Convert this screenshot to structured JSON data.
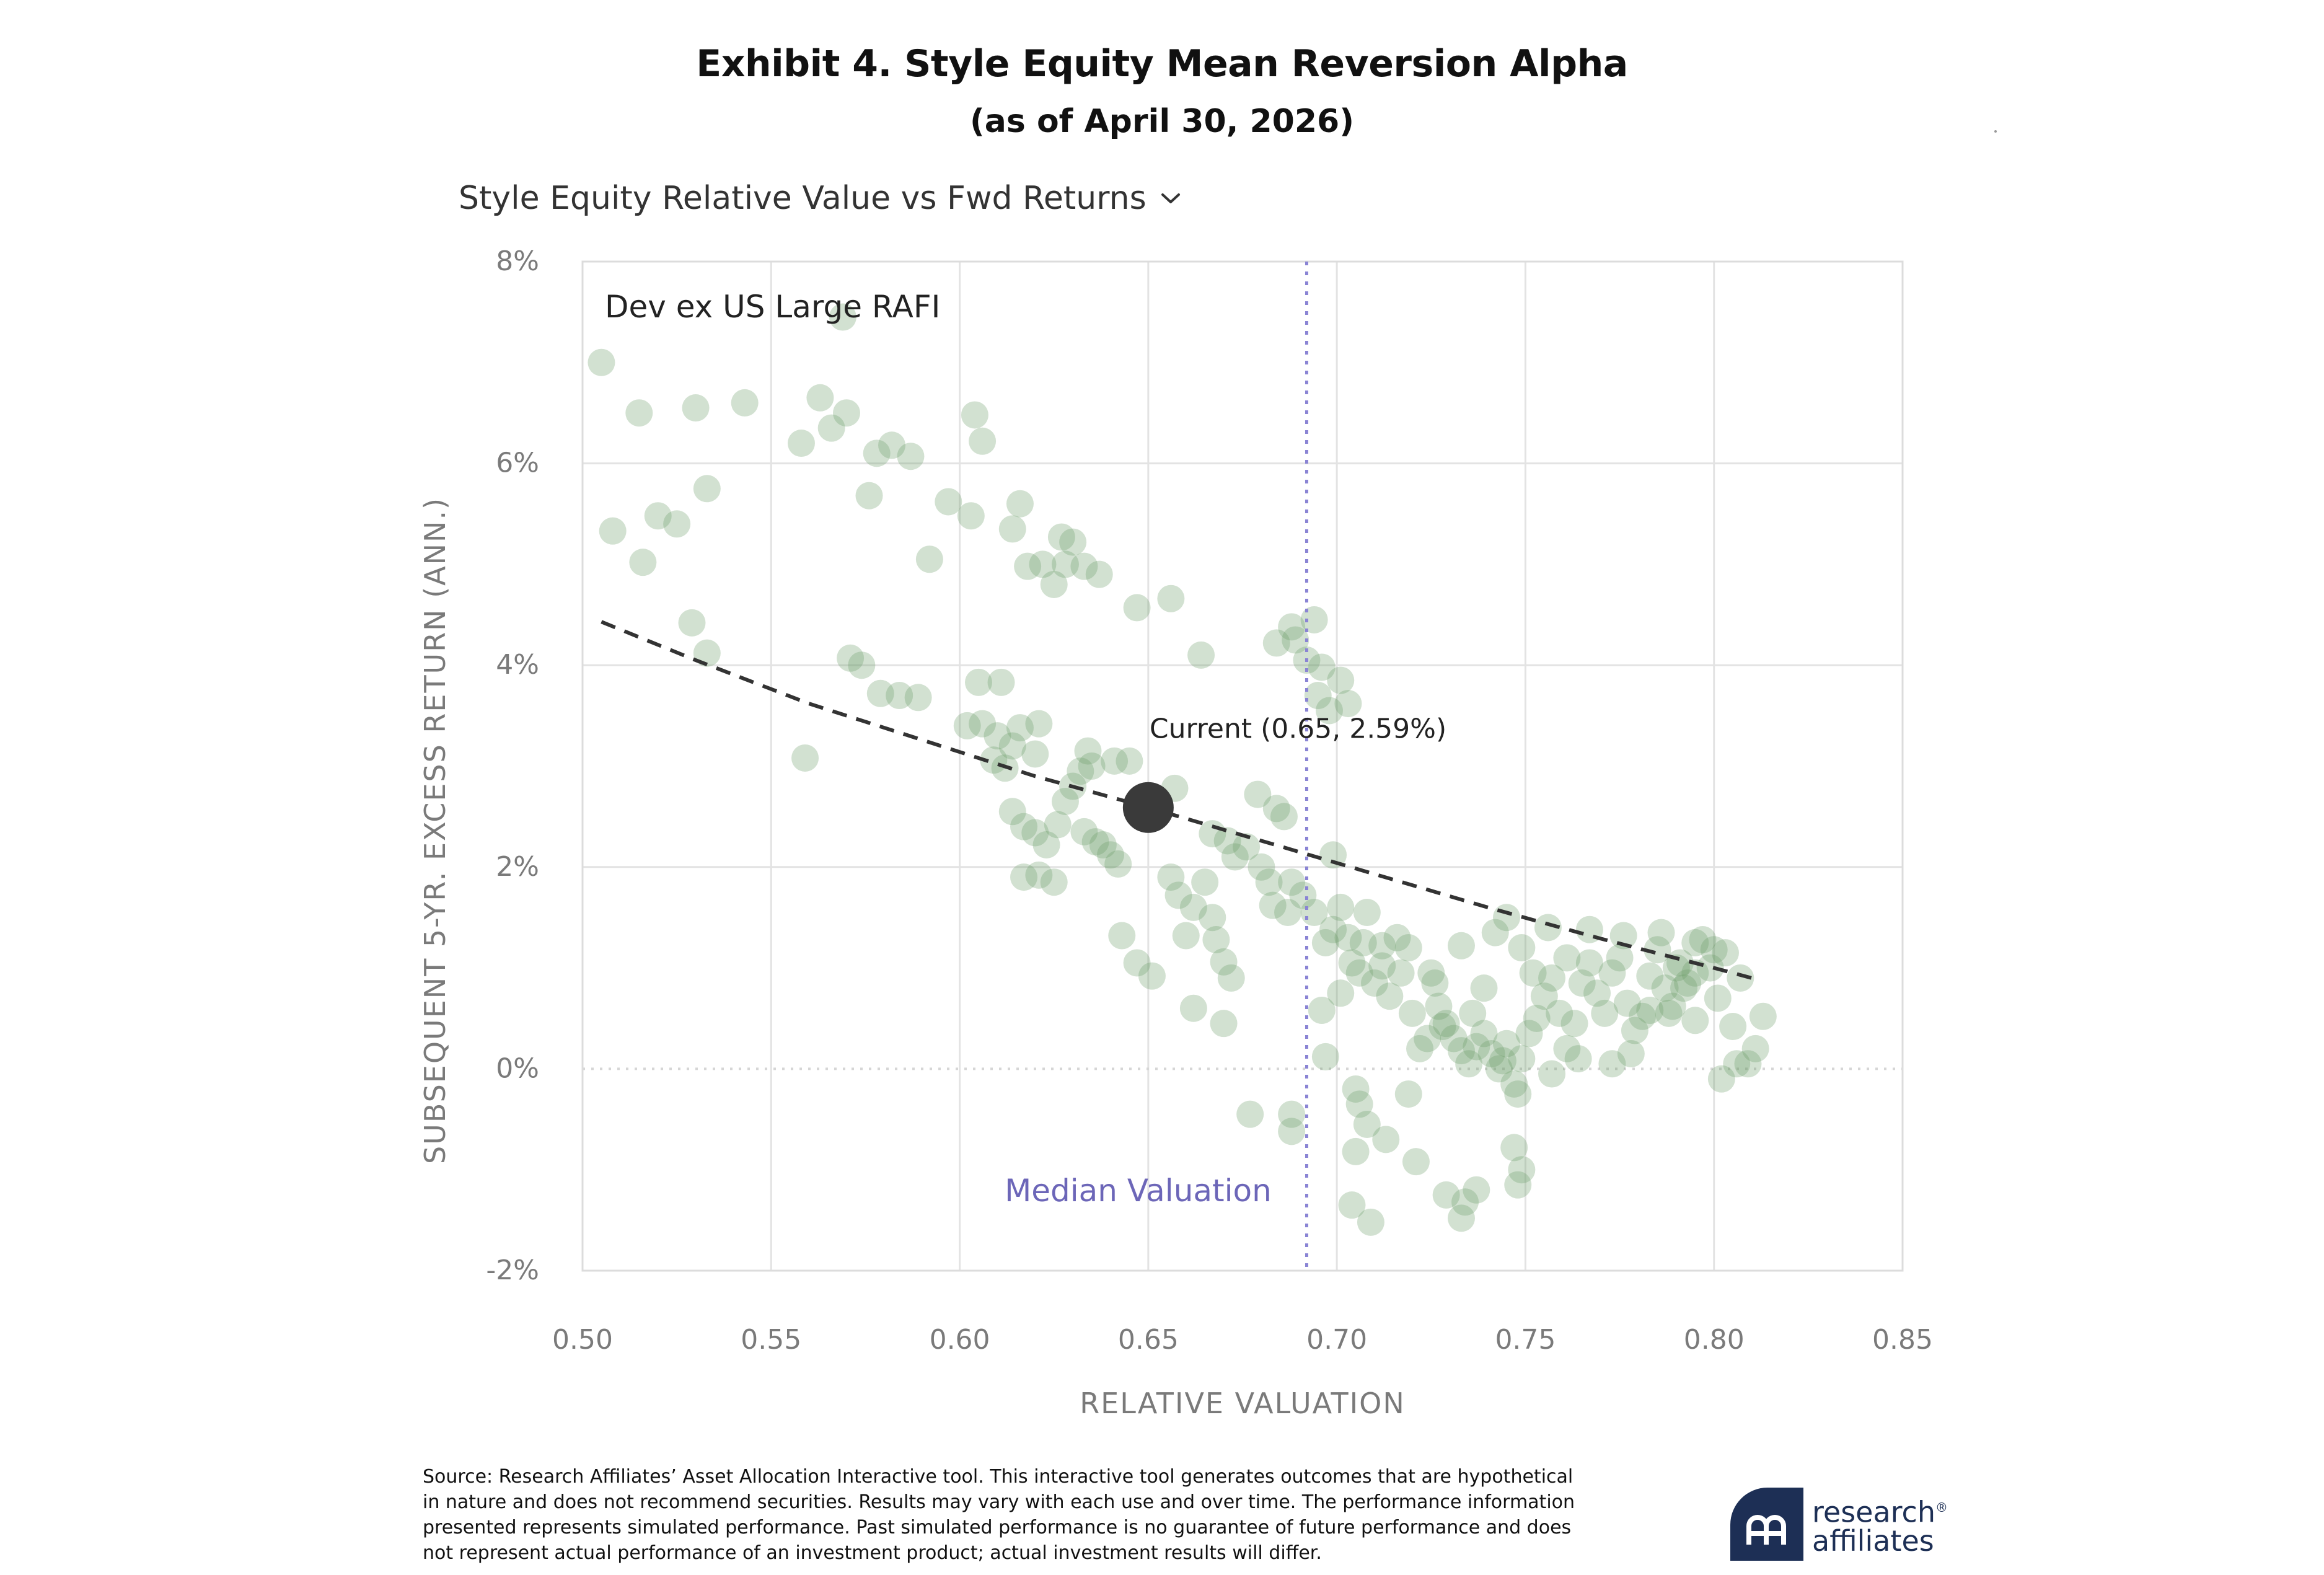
{
  "header": {
    "title": "Exhibit 4. Style Equity Mean Reversion Alpha",
    "subtitle": "(as of April 30, 2026)"
  },
  "selector": {
    "label": "Style Equity Relative Value vs Fwd Returns",
    "icon": "chevron-down-icon"
  },
  "chart_data": {
    "type": "scatter",
    "series_label": "Dev ex US Large RAFI",
    "xlabel": "RELATIVE VALUATION",
    "ylabel": "SUBSEQUENT 5-YR. EXCESS RETURN (ANN.)",
    "xlim": [
      0.5,
      0.85
    ],
    "ylim": [
      -2,
      8
    ],
    "x_ticks": [
      0.5,
      0.55,
      0.6,
      0.65,
      0.7,
      0.75,
      0.8,
      0.85
    ],
    "x_tick_labels": [
      "0.50",
      "0.55",
      "0.60",
      "0.65",
      "0.70",
      "0.75",
      "0.80",
      "0.85"
    ],
    "y_ticks": [
      -2,
      0,
      2,
      4,
      6,
      8
    ],
    "y_tick_labels": [
      "-2%",
      "0%",
      "2%",
      "4%",
      "6%",
      "8%"
    ],
    "grid": true,
    "median_valuation": 0.692,
    "median_label": "Median Valuation",
    "current": {
      "x": 0.65,
      "y": 2.59,
      "label": "Current (0.65, 2.59%)"
    },
    "trend_line": {
      "x": [
        0.505,
        0.53,
        0.56,
        0.59,
        0.62,
        0.65,
        0.68,
        0.71,
        0.74,
        0.77,
        0.8,
        0.812
      ],
      "y": [
        4.43,
        4.05,
        3.62,
        3.26,
        2.9,
        2.59,
        2.26,
        1.93,
        1.6,
        1.29,
        1.0,
        0.88
      ]
    },
    "points": [
      [
        0.505,
        7.0
      ],
      [
        0.515,
        6.5
      ],
      [
        0.53,
        6.55
      ],
      [
        0.543,
        6.6
      ],
      [
        0.563,
        6.65
      ],
      [
        0.569,
        7.45
      ],
      [
        0.57,
        6.5
      ],
      [
        0.508,
        5.33
      ],
      [
        0.52,
        5.48
      ],
      [
        0.525,
        5.4
      ],
      [
        0.516,
        5.02
      ],
      [
        0.533,
        5.75
      ],
      [
        0.558,
        6.2
      ],
      [
        0.566,
        6.35
      ],
      [
        0.578,
        6.1
      ],
      [
        0.582,
        6.18
      ],
      [
        0.587,
        6.07
      ],
      [
        0.604,
        6.48
      ],
      [
        0.606,
        6.22
      ],
      [
        0.576,
        5.68
      ],
      [
        0.597,
        5.62
      ],
      [
        0.603,
        5.48
      ],
      [
        0.614,
        5.35
      ],
      [
        0.616,
        5.6
      ],
      [
        0.618,
        4.98
      ],
      [
        0.622,
        5.0
      ],
      [
        0.627,
        5.27
      ],
      [
        0.63,
        5.22
      ],
      [
        0.628,
        5.0
      ],
      [
        0.633,
        4.98
      ],
      [
        0.637,
        4.9
      ],
      [
        0.625,
        4.8
      ],
      [
        0.592,
        5.05
      ],
      [
        0.647,
        4.57
      ],
      [
        0.656,
        4.66
      ],
      [
        0.664,
        4.1
      ],
      [
        0.529,
        4.42
      ],
      [
        0.533,
        4.12
      ],
      [
        0.571,
        4.07
      ],
      [
        0.574,
        4.0
      ],
      [
        0.579,
        3.72
      ],
      [
        0.584,
        3.7
      ],
      [
        0.589,
        3.68
      ],
      [
        0.605,
        3.83
      ],
      [
        0.611,
        3.83
      ],
      [
        0.559,
        3.08
      ],
      [
        0.602,
        3.4
      ],
      [
        0.606,
        3.42
      ],
      [
        0.61,
        3.3
      ],
      [
        0.614,
        3.2
      ],
      [
        0.616,
        3.38
      ],
      [
        0.62,
        3.12
      ],
      [
        0.621,
        3.42
      ],
      [
        0.609,
        3.06
      ],
      [
        0.612,
        2.98
      ],
      [
        0.634,
        3.15
      ],
      [
        0.635,
        3.0
      ],
      [
        0.641,
        3.05
      ],
      [
        0.645,
        3.05
      ],
      [
        0.632,
        2.95
      ],
      [
        0.614,
        2.55
      ],
      [
        0.617,
        2.4
      ],
      [
        0.62,
        2.34
      ],
      [
        0.623,
        2.22
      ],
      [
        0.626,
        2.42
      ],
      [
        0.628,
        2.65
      ],
      [
        0.63,
        2.8
      ],
      [
        0.633,
        2.35
      ],
      [
        0.636,
        2.25
      ],
      [
        0.638,
        2.22
      ],
      [
        0.64,
        2.12
      ],
      [
        0.642,
        2.03
      ],
      [
        0.617,
        1.9
      ],
      [
        0.621,
        1.92
      ],
      [
        0.625,
        1.85
      ],
      [
        0.657,
        2.78
      ],
      [
        0.656,
        1.9
      ],
      [
        0.658,
        1.72
      ],
      [
        0.66,
        1.32
      ],
      [
        0.662,
        1.6
      ],
      [
        0.665,
        1.85
      ],
      [
        0.667,
        1.5
      ],
      [
        0.668,
        1.28
      ],
      [
        0.67,
        1.06
      ],
      [
        0.672,
        0.9
      ],
      [
        0.667,
        2.33
      ],
      [
        0.671,
        2.26
      ],
      [
        0.673,
        2.1
      ],
      [
        0.676,
        2.2
      ],
      [
        0.68,
        2.0
      ],
      [
        0.682,
        1.85
      ],
      [
        0.683,
        1.62
      ],
      [
        0.679,
        2.72
      ],
      [
        0.684,
        2.58
      ],
      [
        0.686,
        2.5
      ],
      [
        0.688,
        1.85
      ],
      [
        0.691,
        1.72
      ],
      [
        0.687,
        1.55
      ],
      [
        0.643,
        1.32
      ],
      [
        0.647,
        1.05
      ],
      [
        0.651,
        0.92
      ],
      [
        0.662,
        0.6
      ],
      [
        0.67,
        0.45
      ],
      [
        0.677,
        -0.45
      ],
      [
        0.688,
        -0.45
      ],
      [
        0.688,
        -0.62
      ],
      [
        0.684,
        4.22
      ],
      [
        0.688,
        4.38
      ],
      [
        0.689,
        4.25
      ],
      [
        0.694,
        4.45
      ],
      [
        0.692,
        4.05
      ],
      [
        0.696,
        3.98
      ],
      [
        0.695,
        3.7
      ],
      [
        0.698,
        3.55
      ],
      [
        0.701,
        3.85
      ],
      [
        0.703,
        3.62
      ],
      [
        0.699,
        2.12
      ],
      [
        0.694,
        1.55
      ],
      [
        0.697,
        1.25
      ],
      [
        0.699,
        1.38
      ],
      [
        0.701,
        1.6
      ],
      [
        0.703,
        1.3
      ],
      [
        0.704,
        1.05
      ],
      [
        0.706,
        0.95
      ],
      [
        0.708,
        1.55
      ],
      [
        0.71,
        0.85
      ],
      [
        0.712,
        1.22
      ],
      [
        0.714,
        0.72
      ],
      [
        0.716,
        1.3
      ],
      [
        0.719,
        1.2
      ],
      [
        0.72,
        0.55
      ],
      [
        0.722,
        0.2
      ],
      [
        0.724,
        0.3
      ],
      [
        0.725,
        0.95
      ],
      [
        0.727,
        0.62
      ],
      [
        0.729,
        0.45
      ],
      [
        0.731,
        0.3
      ],
      [
        0.733,
        0.18
      ],
      [
        0.735,
        0.05
      ],
      [
        0.737,
        0.22
      ],
      [
        0.739,
        0.35
      ],
      [
        0.741,
        0.15
      ],
      [
        0.743,
        0.0
      ],
      [
        0.745,
        0.25
      ],
      [
        0.747,
        -0.15
      ],
      [
        0.749,
        0.1
      ],
      [
        0.751,
        0.35
      ],
      [
        0.753,
        0.5
      ],
      [
        0.755,
        0.72
      ],
      [
        0.757,
        0.9
      ],
      [
        0.759,
        0.55
      ],
      [
        0.761,
        0.2
      ],
      [
        0.763,
        0.45
      ],
      [
        0.765,
        0.85
      ],
      [
        0.767,
        1.05
      ],
      [
        0.769,
        0.75
      ],
      [
        0.771,
        0.55
      ],
      [
        0.773,
        0.95
      ],
      [
        0.775,
        1.1
      ],
      [
        0.777,
        0.65
      ],
      [
        0.779,
        0.38
      ],
      [
        0.781,
        0.52
      ],
      [
        0.783,
        0.92
      ],
      [
        0.785,
        1.18
      ],
      [
        0.787,
        0.8
      ],
      [
        0.789,
        0.62
      ],
      [
        0.791,
        1.05
      ],
      [
        0.793,
        0.85
      ],
      [
        0.795,
        0.48
      ],
      [
        0.797,
        1.28
      ],
      [
        0.799,
        1.0
      ],
      [
        0.801,
        0.7
      ],
      [
        0.803,
        1.15
      ],
      [
        0.805,
        0.42
      ],
      [
        0.807,
        0.9
      ],
      [
        0.809,
        0.05
      ],
      [
        0.811,
        0.2
      ],
      [
        0.813,
        0.52
      ],
      [
        0.802,
        -0.1
      ],
      [
        0.806,
        0.05
      ],
      [
        0.733,
        1.22
      ],
      [
        0.736,
        0.55
      ],
      [
        0.739,
        0.8
      ],
      [
        0.742,
        1.35
      ],
      [
        0.745,
        1.5
      ],
      [
        0.749,
        1.2
      ],
      [
        0.752,
        0.95
      ],
      [
        0.756,
        1.4
      ],
      [
        0.761,
        1.1
      ],
      [
        0.767,
        1.38
      ],
      [
        0.776,
        1.32
      ],
      [
        0.786,
        1.35
      ],
      [
        0.795,
        1.25
      ],
      [
        0.8,
        1.18
      ],
      [
        0.705,
        -0.2
      ],
      [
        0.706,
        -0.35
      ],
      [
        0.708,
        -0.55
      ],
      [
        0.705,
        -0.82
      ],
      [
        0.713,
        -0.7
      ],
      [
        0.721,
        -0.92
      ],
      [
        0.729,
        -1.25
      ],
      [
        0.734,
        -1.32
      ],
      [
        0.737,
        -1.2
      ],
      [
        0.733,
        -1.48
      ],
      [
        0.747,
        -0.78
      ],
      [
        0.749,
        -1.0
      ],
      [
        0.748,
        -1.15
      ],
      [
        0.704,
        -1.35
      ],
      [
        0.709,
        -1.52
      ],
      [
        0.728,
        0.42
      ],
      [
        0.744,
        0.08
      ],
      [
        0.748,
        -0.25
      ],
      [
        0.757,
        -0.05
      ],
      [
        0.764,
        0.1
      ],
      [
        0.773,
        0.05
      ],
      [
        0.778,
        0.15
      ],
      [
        0.788,
        0.55
      ],
      [
        0.792,
        0.8
      ],
      [
        0.79,
        1.0
      ],
      [
        0.795,
        0.95
      ],
      [
        0.783,
        0.58
      ],
      [
        0.717,
        0.95
      ],
      [
        0.726,
        0.85
      ],
      [
        0.719,
        -0.25
      ],
      [
        0.697,
        0.12
      ],
      [
        0.696,
        0.58
      ],
      [
        0.701,
        0.75
      ],
      [
        0.707,
        1.25
      ],
      [
        0.712,
        1.02
      ]
    ]
  },
  "footer": {
    "source_text": "Source: Research Affiliates’ Asset Allocation Interactive tool. This interactive tool generates outcomes that are hypothetical in nature and does not recommend securities. Results may vary with each use and over time. The performance information presented represents simulated performance. Past simulated performance is no guarantee of future performance and does not represent actual performance of an investment product; actual investment results will differ.",
    "logo_line1": "research",
    "logo_reg": "®",
    "logo_line2": "affiliates"
  },
  "colors": {
    "point_fill": "#6b9a66",
    "grid": "#e3e3e3",
    "median_line": "#8a84d4",
    "median_label": "#6c66b8",
    "trend": "#333333",
    "current": "#3a3a3a",
    "axis_text": "#7a7a7a",
    "logo": "#1d2f55"
  }
}
